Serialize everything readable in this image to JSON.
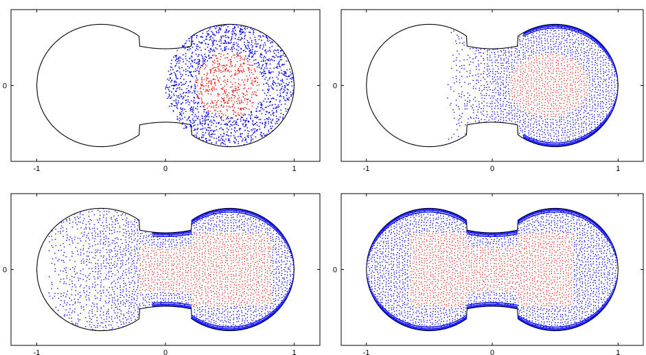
{
  "chart_data": [
    {
      "type": "scatter",
      "panel": "top-left",
      "title": "",
      "xlabel": "",
      "ylabel": "",
      "xlim": [
        -1.2,
        1.2
      ],
      "ylim": [
        -0.62,
        0.62
      ],
      "x_ticks": [
        "-1",
        "0",
        "1"
      ],
      "y_ticks": [
        "0"
      ],
      "grid": false,
      "domain": {
        "left_lobe": {
          "cx": -0.5,
          "cy": 0,
          "r": 0.5
        },
        "right_lobe": {
          "cx": 0.5,
          "cy": 0,
          "r": 0.5
        },
        "neck_halfwidth": 0.3
      },
      "series": [
        {
          "color": "#0000ee",
          "distribution": "random uniform",
          "region": {
            "cx": 0.5,
            "cy": 0,
            "r": 0.5
          },
          "count": 1400
        },
        {
          "color": "#ee0000",
          "distribution": "random uniform",
          "region": {
            "cx": 0.5,
            "cy": 0,
            "r": 0.25
          },
          "count": 500
        }
      ]
    },
    {
      "type": "scatter",
      "panel": "top-right",
      "title": "",
      "xlabel": "",
      "ylabel": "",
      "xlim": [
        -1.2,
        1.2
      ],
      "ylim": [
        -0.62,
        0.62
      ],
      "x_ticks": [
        "-1",
        "0",
        "1"
      ],
      "y_ticks": [
        "0"
      ],
      "grid": false,
      "series": [
        {
          "color": "#0000ee",
          "distribution": "quasi-uniform, dense toward boundary",
          "x_range": [
            -0.35,
            1.0
          ],
          "count": 2200
        },
        {
          "color": "#ee0000",
          "distribution": "quasi-uniform",
          "region": {
            "cx": 0.45,
            "cy": 0,
            "r": 0.32
          },
          "count": 620
        }
      ]
    },
    {
      "type": "scatter",
      "panel": "bottom-left",
      "title": "",
      "xlabel": "",
      "ylabel": "",
      "xlim": [
        -1.2,
        1.2
      ],
      "ylim": [
        -0.62,
        0.62
      ],
      "x_ticks": [
        "-1",
        "0",
        "1"
      ],
      "y_ticks": [
        "0"
      ],
      "grid": false,
      "series": [
        {
          "color": "#0000ee",
          "distribution": "quasi-uniform, dense toward right boundary",
          "x_range": [
            -0.9,
            1.0
          ],
          "count": 2400
        },
        {
          "color": "#ee0000",
          "distribution": "quasi-uniform",
          "region": {
            "x_range": [
              -0.2,
              0.82
            ],
            "y_range": [
              -0.3,
              0.3
            ]
          },
          "count": 700
        }
      ]
    },
    {
      "type": "scatter",
      "panel": "bottom-right",
      "title": "",
      "xlabel": "",
      "ylabel": "",
      "xlim": [
        -1.2,
        1.2
      ],
      "ylim": [
        -0.62,
        0.62
      ],
      "x_ticks": [
        "-1",
        "0",
        "1"
      ],
      "y_ticks": [
        "0"
      ],
      "grid": false,
      "series": [
        {
          "color": "#0000ee",
          "distribution": "quasi-uniform, dense along full boundary",
          "x_range": [
            -1.0,
            1.0
          ],
          "count": 2500
        },
        {
          "color": "#ee0000",
          "distribution": "quasi-uniform",
          "region": {
            "x_range": [
              -0.65,
              0.65
            ],
            "y_range": [
              -0.3,
              0.3
            ]
          },
          "count": 650
        }
      ]
    }
  ]
}
